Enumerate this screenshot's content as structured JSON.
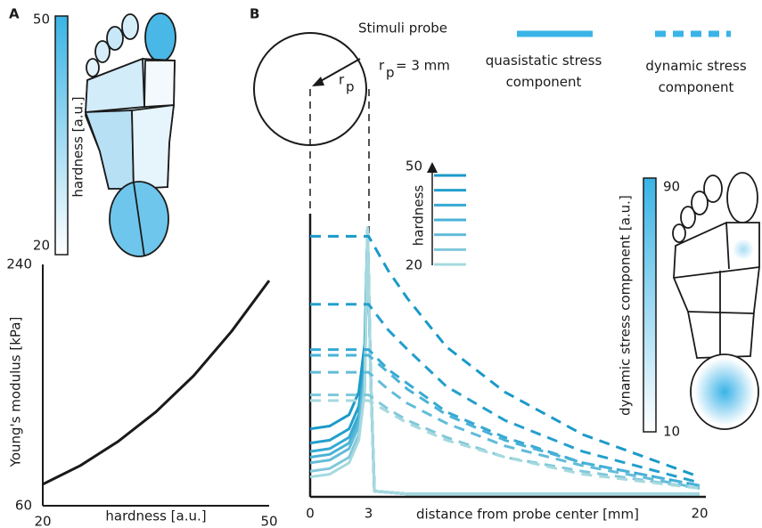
{
  "panel_labels": [
    "A",
    "B"
  ],
  "hardness_colorbar": {
    "label": "hardness [a.u.]",
    "ticks": [
      50,
      20
    ],
    "color": "#3ab4e6"
  },
  "dynamic_colorbar": {
    "label": "dynamic stress component [a.u.]",
    "ticks": [
      90,
      10
    ],
    "color": "#3ab4e6"
  },
  "probe": {
    "title": "Stimuli probe",
    "radius_symbol": "r",
    "radius_subscript": "p",
    "radius_text": "= 3 mm"
  },
  "legend": [
    {
      "label": "quasistatic stress component",
      "dash": false,
      "color": "#3ab4e6"
    },
    {
      "label": "dynamic stress component",
      "dash": true,
      "color": "#3ab4e6"
    }
  ],
  "hardness_inset": {
    "label": "hardness",
    "ticks": [
      50,
      20
    ]
  },
  "chart_data": [
    {
      "type": "line",
      "x_label": "hardness [a.u.]",
      "y_label": "Young's modulus [kPa]",
      "x": [
        20,
        25,
        30,
        35,
        40,
        45,
        50
      ],
      "values": [
        76,
        90,
        108,
        130,
        157,
        190,
        228
      ],
      "color": "#1a1a1a",
      "xlim": [
        20,
        50
      ],
      "ylim": [
        60,
        240
      ],
      "xticks": [
        20,
        50
      ],
      "yticks": [
        60,
        240
      ]
    },
    {
      "type": "line",
      "x_label": "distance from probe center [mm]",
      "xlim": [
        0,
        20
      ],
      "ylim": [
        0,
        1
      ],
      "xticks": [
        0,
        3,
        20
      ],
      "series": [
        {
          "color": "#1a9ac8",
          "dash": false,
          "x": [
            0,
            1,
            2,
            2.5,
            2.8,
            2.95,
            3.1,
            3.3,
            5,
            20
          ],
          "values": [
            0.24,
            0.25,
            0.29,
            0.37,
            0.54,
            0.95,
            0.45,
            0.02,
            0.01,
            0.01
          ]
        },
        {
          "color": "#239fcc",
          "dash": false,
          "x": [
            0,
            1,
            2,
            2.5,
            2.8,
            2.95,
            3.1,
            3.3,
            5,
            20
          ],
          "values": [
            0.19,
            0.2,
            0.24,
            0.32,
            0.49,
            0.95,
            0.45,
            0.02,
            0.01,
            0.01
          ]
        },
        {
          "color": "#35a9d3",
          "dash": false,
          "x": [
            0,
            1,
            2,
            2.5,
            2.8,
            2.95,
            3.1,
            3.3,
            5,
            20
          ],
          "values": [
            0.16,
            0.17,
            0.21,
            0.29,
            0.46,
            0.95,
            0.45,
            0.02,
            0.01,
            0.01
          ]
        },
        {
          "color": "#4ab2d7",
          "dash": false,
          "x": [
            0,
            1,
            2,
            2.5,
            2.8,
            2.95,
            3.1,
            3.3,
            5,
            20
          ],
          "values": [
            0.14,
            0.15,
            0.19,
            0.27,
            0.44,
            0.95,
            0.45,
            0.02,
            0.01,
            0.01
          ]
        },
        {
          "color": "#62bcd9",
          "dash": false,
          "x": [
            0,
            1,
            2,
            2.5,
            2.8,
            2.95,
            3.1,
            3.3,
            5,
            20
          ],
          "values": [
            0.12,
            0.13,
            0.17,
            0.25,
            0.42,
            0.95,
            0.45,
            0.02,
            0.01,
            0.01
          ]
        },
        {
          "color": "#80c8db",
          "dash": false,
          "x": [
            0,
            1,
            2,
            2.5,
            2.8,
            2.95,
            3.1,
            3.3,
            5,
            20
          ],
          "values": [
            0.09,
            0.1,
            0.14,
            0.22,
            0.39,
            0.95,
            0.45,
            0.02,
            0.01,
            0.01
          ]
        },
        {
          "color": "#a6d9de",
          "dash": false,
          "x": [
            0,
            1,
            2,
            2.5,
            2.8,
            2.95,
            3.1,
            3.3,
            5,
            20
          ],
          "values": [
            0.07,
            0.08,
            0.12,
            0.2,
            0.37,
            0.95,
            0.45,
            0.02,
            0.01,
            0.01
          ]
        },
        {
          "color": "#1a9ac8",
          "dash": true,
          "x": [
            0,
            3,
            4,
            5,
            7,
            10,
            14,
            20
          ],
          "values": [
            0.92,
            0.92,
            0.8,
            0.7,
            0.53,
            0.37,
            0.22,
            0.07
          ]
        },
        {
          "color": "#239fcc",
          "dash": true,
          "x": [
            0,
            3,
            4,
            5,
            7,
            10,
            14,
            20
          ],
          "values": [
            0.68,
            0.68,
            0.59,
            0.52,
            0.39,
            0.27,
            0.16,
            0.05
          ]
        },
        {
          "color": "#35a9d3",
          "dash": true,
          "x": [
            0,
            3,
            4,
            5,
            7,
            10,
            14,
            20
          ],
          "values": [
            0.52,
            0.52,
            0.45,
            0.4,
            0.3,
            0.21,
            0.12,
            0.04
          ]
        },
        {
          "color": "#4ab2d7",
          "dash": true,
          "x": [
            0,
            3,
            4,
            5,
            7,
            10,
            14,
            20
          ],
          "values": [
            0.5,
            0.5,
            0.44,
            0.38,
            0.29,
            0.2,
            0.12,
            0.04
          ]
        },
        {
          "color": "#62bcd9",
          "dash": true,
          "x": [
            0,
            3,
            4,
            5,
            7,
            10,
            14,
            20
          ],
          "values": [
            0.44,
            0.44,
            0.38,
            0.33,
            0.26,
            0.18,
            0.11,
            0.03
          ]
        },
        {
          "color": "#80c8db",
          "dash": true,
          "x": [
            0,
            3,
            4,
            5,
            7,
            10,
            14,
            20
          ],
          "values": [
            0.36,
            0.36,
            0.31,
            0.27,
            0.21,
            0.14,
            0.09,
            0.03
          ]
        },
        {
          "color": "#a6d9de",
          "dash": true,
          "x": [
            0,
            3,
            4,
            5,
            7,
            10,
            14,
            20
          ],
          "values": [
            0.34,
            0.34,
            0.3,
            0.26,
            0.2,
            0.14,
            0.08,
            0.03
          ]
        }
      ]
    }
  ]
}
